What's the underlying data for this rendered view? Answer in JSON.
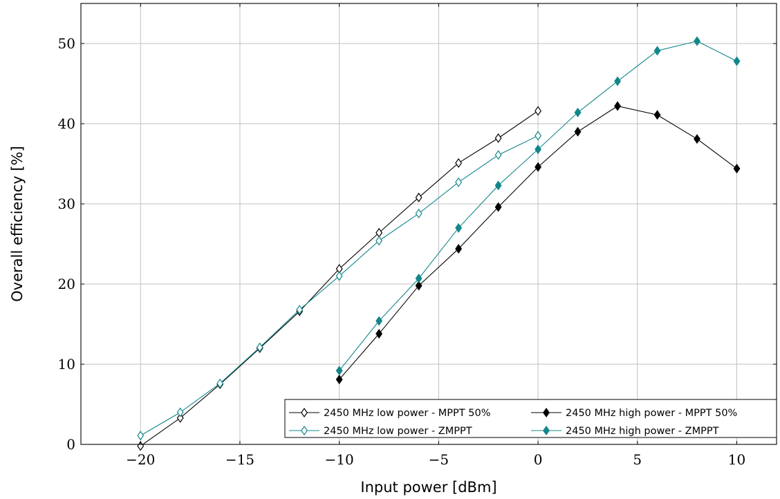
{
  "chart_data": {
    "type": "line",
    "title": "",
    "xlabel": "Input power [dBm]",
    "ylabel": "Overall efficiency [%]",
    "xlim": [
      -23,
      12
    ],
    "ylim": [
      0,
      55
    ],
    "xticks": [
      -20,
      -15,
      -10,
      -5,
      0,
      5,
      10
    ],
    "xtick_labels": [
      "−20",
      "−15",
      "−10",
      "−5",
      "0",
      "5",
      "10"
    ],
    "yticks": [
      0,
      10,
      20,
      30,
      40,
      50
    ],
    "ytick_labels": [
      "0",
      "10",
      "20",
      "30",
      "40",
      "50"
    ],
    "grid": true,
    "legend_position": "bottom-right",
    "series": [
      {
        "name": "2450 MHz low power - MPPT 50%",
        "color": "#000000",
        "marker": "diamond-open",
        "x": [
          -20,
          -18,
          -16,
          -14,
          -12,
          -10,
          -8,
          -6,
          -4,
          -2,
          0
        ],
        "y": [
          -0.2,
          3.3,
          7.5,
          12.0,
          16.6,
          21.9,
          26.4,
          30.8,
          35.1,
          38.2,
          41.6
        ]
      },
      {
        "name": "2450 MHz high power - MPPT 50%",
        "color": "#000000",
        "marker": "diamond-filled",
        "x": [
          -10,
          -8,
          -6,
          -4,
          -2,
          0,
          2,
          4,
          6,
          8,
          10
        ],
        "y": [
          8.1,
          13.8,
          19.8,
          24.4,
          29.6,
          34.6,
          39.0,
          42.2,
          41.1,
          38.1,
          34.4
        ]
      },
      {
        "name": "2450 MHz low power - ZMPPT",
        "color": "#11878a",
        "marker": "diamond-open",
        "x": [
          -20,
          -18,
          -16,
          -14,
          -12,
          -10,
          -8,
          -6,
          -4,
          -2,
          0
        ],
        "y": [
          1.1,
          4.0,
          7.6,
          12.1,
          16.8,
          21.0,
          25.4,
          28.8,
          32.7,
          36.1,
          38.5
        ]
      },
      {
        "name": "2450 MHz high power - ZMPPT",
        "color": "#11878a",
        "marker": "diamond-filled",
        "x": [
          -10,
          -8,
          -6,
          -4,
          -2,
          0,
          2,
          4,
          6,
          8,
          10
        ],
        "y": [
          9.2,
          15.4,
          20.7,
          27.0,
          32.3,
          36.8,
          41.4,
          45.3,
          49.1,
          50.3,
          47.8
        ]
      }
    ]
  }
}
